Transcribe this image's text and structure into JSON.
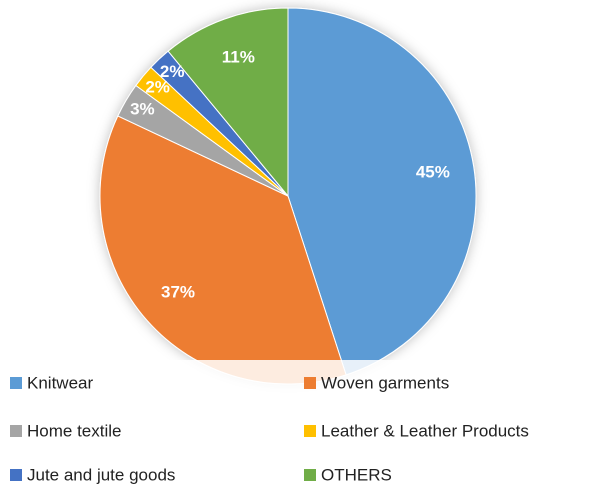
{
  "chart_data": {
    "type": "pie",
    "categories": [
      "Knitwear",
      "Woven garments",
      "Home textile",
      "Leather & Leather Products",
      "Jute and jute goods",
      "OTHERS"
    ],
    "values": [
      45,
      37,
      3,
      2,
      2,
      11
    ],
    "value_labels": [
      "45%",
      "37%",
      "3%",
      "2%",
      "2%",
      "11%"
    ],
    "colors": [
      "#5b9bd5",
      "#ed7d31",
      "#a5a5a5",
      "#ffc000",
      "#4472c4",
      "#70ad47"
    ],
    "legend": "bottom"
  }
}
